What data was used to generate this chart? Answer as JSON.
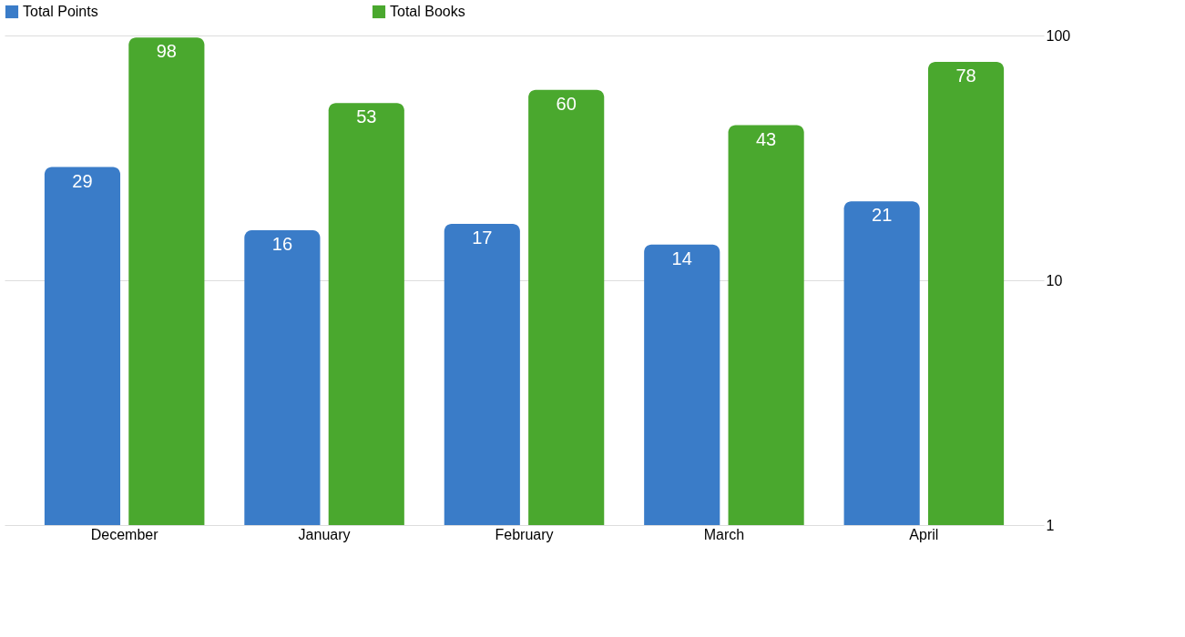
{
  "chart_data": {
    "type": "bar",
    "categories": [
      "December",
      "January",
      "February",
      "March",
      "April"
    ],
    "series": [
      {
        "name": "Total Points",
        "color": "#3a7cc8",
        "values": [
          29,
          16,
          17,
          14,
          21
        ]
      },
      {
        "name": "Total Books",
        "color": "#4aa82e",
        "values": [
          98,
          53,
          60,
          43,
          78
        ]
      }
    ],
    "log": "y",
    "ylim": [
      1,
      100
    ],
    "yticks": [
      1,
      10,
      100
    ],
    "grid": "y",
    "legend": "top",
    "data_labels": true
  }
}
